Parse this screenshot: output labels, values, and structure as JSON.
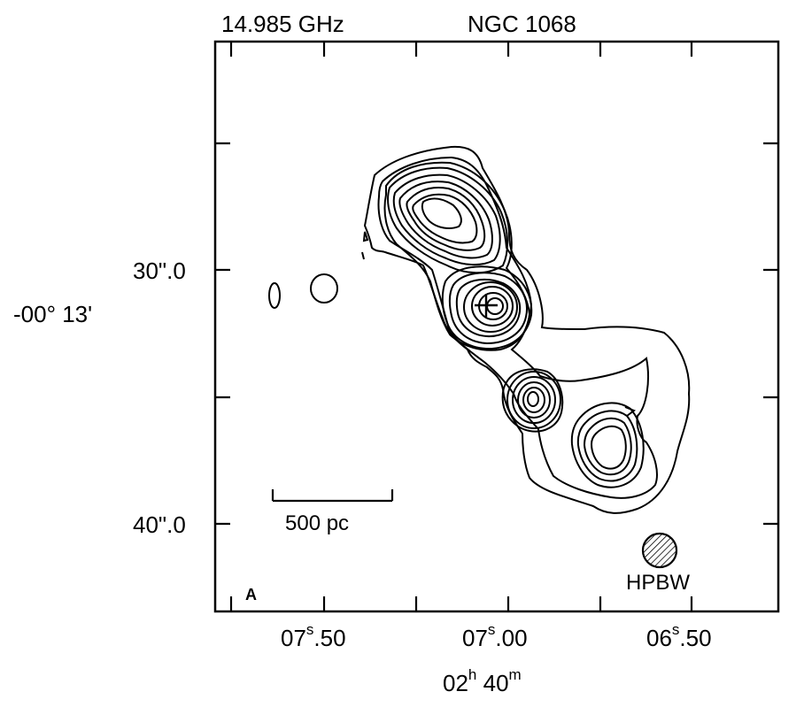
{
  "header": {
    "frequency": "14.985 GHz",
    "source": "NGC 1068"
  },
  "axes": {
    "dec_prefix": "-00° 13'",
    "y_ticks": [
      "30\".0",
      "40\".0"
    ],
    "x_ticks": [
      {
        "sec": "07",
        "s": "s",
        "frac": ".50"
      },
      {
        "sec": "07",
        "s": "s",
        "frac": ".00"
      },
      {
        "sec": "06",
        "s": "s",
        "frac": ".50"
      }
    ],
    "x_axis_label": {
      "h_val": "02",
      "h": "h",
      "m_val": "40",
      "m": "m"
    }
  },
  "scale_bar": {
    "label": "500 pc"
  },
  "beam": {
    "label": "HPBW"
  },
  "panel_letter": "A",
  "colors": {
    "ink": "#000000",
    "background": "#ffffff"
  }
}
